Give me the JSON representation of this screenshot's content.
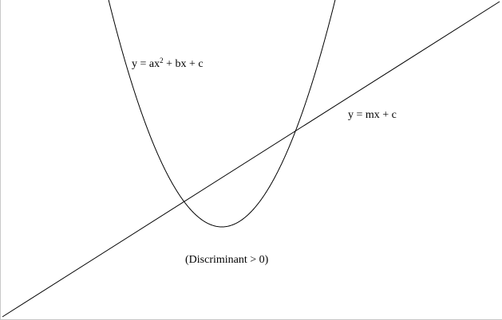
{
  "labels": {
    "parabola_prefix": "y = ax",
    "parabola_exponent": "2",
    "parabola_suffix": " + bx + c",
    "line": "y = mx + c",
    "note": "(Discriminant > 0)"
  },
  "colors": {
    "background": "#ffffff",
    "stroke": "#000000"
  }
}
